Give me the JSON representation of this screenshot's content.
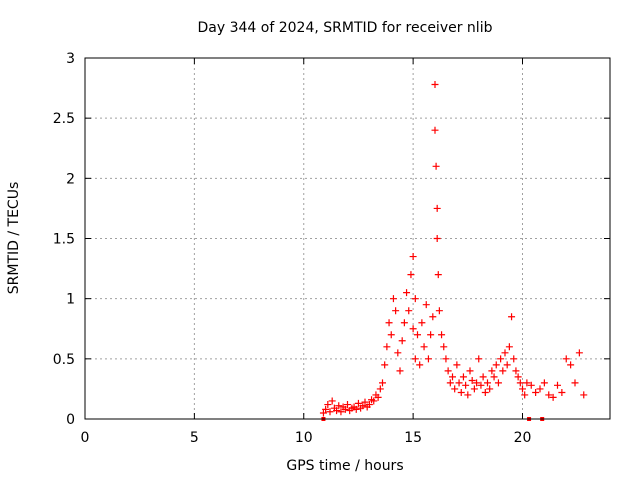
{
  "chart_data": {
    "type": "scatter",
    "title": "Day 344 of 2024, SRMTID for receiver nlib",
    "xlabel": "GPS time / hours",
    "ylabel": "SRMTID / TECUs",
    "xlim": [
      0,
      24
    ],
    "ylim": [
      0,
      3
    ],
    "xticks": [
      0,
      5,
      10,
      15,
      20
    ],
    "yticks": [
      0,
      0.5,
      1,
      1.5,
      2,
      2.5,
      3
    ],
    "xtick_labels": [
      "0",
      "5",
      "10",
      "15",
      "20"
    ],
    "ytick_labels": [
      "0",
      "0.5",
      "1",
      "1.5",
      "2",
      "2.5",
      "3"
    ],
    "grid": true,
    "marker": "+",
    "color": "#ff0000",
    "series": [
      {
        "name": "SRMTID",
        "x": [
          10.9,
          11.0,
          11.1,
          11.2,
          11.3,
          11.4,
          11.5,
          11.6,
          11.7,
          11.8,
          11.9,
          12.0,
          12.1,
          12.2,
          12.3,
          12.4,
          12.5,
          12.6,
          12.7,
          12.8,
          12.9,
          13.0,
          13.1,
          13.2,
          13.3,
          13.4,
          13.5,
          13.6,
          13.7,
          13.8,
          13.9,
          14.0,
          14.1,
          14.2,
          14.3,
          14.4,
          14.5,
          14.6,
          14.7,
          14.8,
          14.9,
          15.0,
          15.0,
          15.1,
          15.1,
          15.2,
          15.3,
          15.4,
          15.5,
          15.6,
          15.7,
          15.8,
          15.9,
          16.0,
          16.0,
          16.05,
          16.1,
          16.1,
          16.15,
          16.2,
          16.3,
          16.4,
          16.5,
          16.6,
          16.7,
          16.8,
          16.9,
          17.0,
          17.1,
          17.2,
          17.3,
          17.4,
          17.5,
          17.6,
          17.7,
          17.8,
          17.9,
          18.0,
          18.1,
          18.2,
          18.3,
          18.4,
          18.5,
          18.6,
          18.7,
          18.8,
          18.9,
          19.0,
          19.1,
          19.2,
          19.3,
          19.4,
          19.5,
          19.6,
          19.7,
          19.8,
          19.9,
          20.0,
          20.1,
          20.2,
          20.4,
          20.6,
          20.8,
          21.0,
          21.2,
          21.4,
          21.6,
          21.8,
          22.0,
          22.2,
          22.4,
          22.6,
          22.8
        ],
        "y": [
          0.05,
          0.08,
          0.12,
          0.06,
          0.15,
          0.09,
          0.07,
          0.11,
          0.06,
          0.1,
          0.08,
          0.12,
          0.07,
          0.09,
          0.1,
          0.08,
          0.13,
          0.09,
          0.11,
          0.14,
          0.1,
          0.12,
          0.16,
          0.15,
          0.2,
          0.18,
          0.25,
          0.3,
          0.45,
          0.6,
          0.8,
          0.7,
          1.0,
          0.9,
          0.55,
          0.4,
          0.65,
          0.8,
          1.05,
          0.9,
          1.2,
          1.35,
          0.75,
          1.0,
          0.5,
          0.7,
          0.45,
          0.8,
          0.6,
          0.95,
          0.5,
          0.7,
          0.85,
          2.78,
          2.4,
          2.1,
          1.75,
          1.5,
          1.2,
          0.9,
          0.7,
          0.6,
          0.5,
          0.4,
          0.3,
          0.35,
          0.25,
          0.45,
          0.3,
          0.22,
          0.35,
          0.28,
          0.2,
          0.4,
          0.32,
          0.25,
          0.3,
          0.5,
          0.28,
          0.35,
          0.22,
          0.3,
          0.25,
          0.4,
          0.35,
          0.45,
          0.3,
          0.5,
          0.4,
          0.55,
          0.45,
          0.6,
          0.85,
          0.5,
          0.4,
          0.35,
          0.3,
          0.25,
          0.2,
          0.3,
          0.28,
          0.22,
          0.25,
          0.3,
          0.2,
          0.18,
          0.28,
          0.22,
          0.5,
          0.45,
          0.3,
          0.55,
          0.2
        ],
        "flagged_x": [
          10.9,
          20.3,
          20.9
        ],
        "flagged_y": [
          0,
          0,
          0
        ]
      }
    ]
  }
}
